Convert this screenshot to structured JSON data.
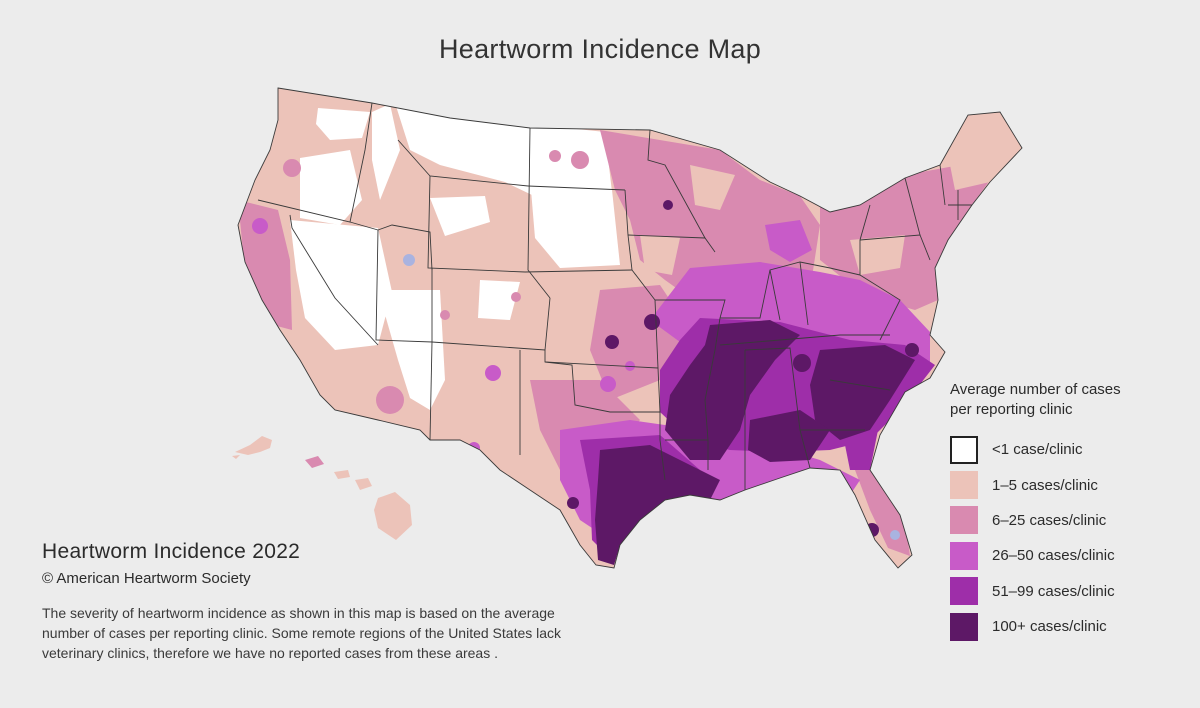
{
  "title": "Heartworm Incidence Map",
  "legend": {
    "title_line1": "Average number of cases",
    "title_line2": "per reporting clinic",
    "items": [
      {
        "label": "<1 case/clinic",
        "color": "#ffffff"
      },
      {
        "label": "1–5 cases/clinic",
        "color": "#ecc3b9"
      },
      {
        "label": "6–25 cases/clinic",
        "color": "#d98ab0"
      },
      {
        "label": "26–50 cases/clinic",
        "color": "#c85bc8"
      },
      {
        "label": "51–99 cases/clinic",
        "color": "#9e2ea9"
      },
      {
        "label": "100+ cases/clinic",
        "color": "#5d1866"
      }
    ]
  },
  "caption": {
    "title": "Heartworm Incidence 2022",
    "copyright": "© American Heartworm Society",
    "body": "The severity of heartworm incidence as shown in this map is based on the average number of cases per reporting clinic. Some remote regions of the United States lack veterinary clinics, therefore we have no reported cases from these areas ."
  },
  "colors": {
    "background": "#ececec",
    "state_border": "#3a3a3a"
  }
}
